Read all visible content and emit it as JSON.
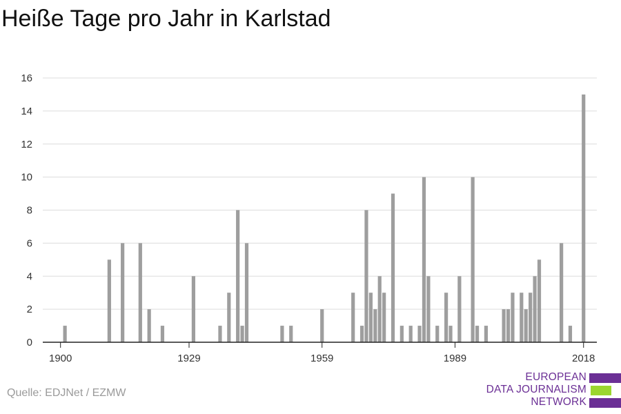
{
  "title": "Heiße Tage pro Jahr in Karlstad",
  "source": "Quelle: EDJNet / EZMW",
  "logo": {
    "line1": "EUROPEAN",
    "line2": "DATA JOURNALISM",
    "line3": "NETWORK",
    "color_purple": "#6b2f95",
    "color_green": "#9bd62f"
  },
  "chart_data": {
    "type": "bar",
    "xlabel": "",
    "ylabel": "",
    "xlim": [
      1896,
      2021
    ],
    "ylim": [
      0,
      16
    ],
    "x_ticks": [
      1900,
      1929,
      1959,
      1989,
      2018
    ],
    "y_ticks": [
      0,
      2,
      4,
      6,
      8,
      10,
      12,
      14,
      16
    ],
    "grid": true,
    "bar_color": "#9e9e9e",
    "x": [
      1901,
      1911,
      1914,
      1918,
      1920,
      1923,
      1930,
      1936,
      1938,
      1940,
      1941,
      1942,
      1950,
      1952,
      1959,
      1966,
      1968,
      1969,
      1970,
      1971,
      1972,
      1973,
      1975,
      1977,
      1979,
      1981,
      1982,
      1983,
      1985,
      1987,
      1988,
      1990,
      1993,
      1994,
      1996,
      2000,
      2001,
      2002,
      2004,
      2005,
      2006,
      2007,
      2008,
      2013,
      2015,
      2018
    ],
    "values": [
      1,
      5,
      6,
      6,
      2,
      1,
      4,
      1,
      3,
      8,
      1,
      6,
      1,
      1,
      2,
      3,
      1,
      8,
      3,
      2,
      4,
      3,
      9,
      1,
      1,
      1,
      10,
      4,
      1,
      3,
      1,
      4,
      10,
      1,
      1,
      2,
      2,
      3,
      3,
      2,
      3,
      4,
      5,
      6,
      1,
      15
    ]
  }
}
